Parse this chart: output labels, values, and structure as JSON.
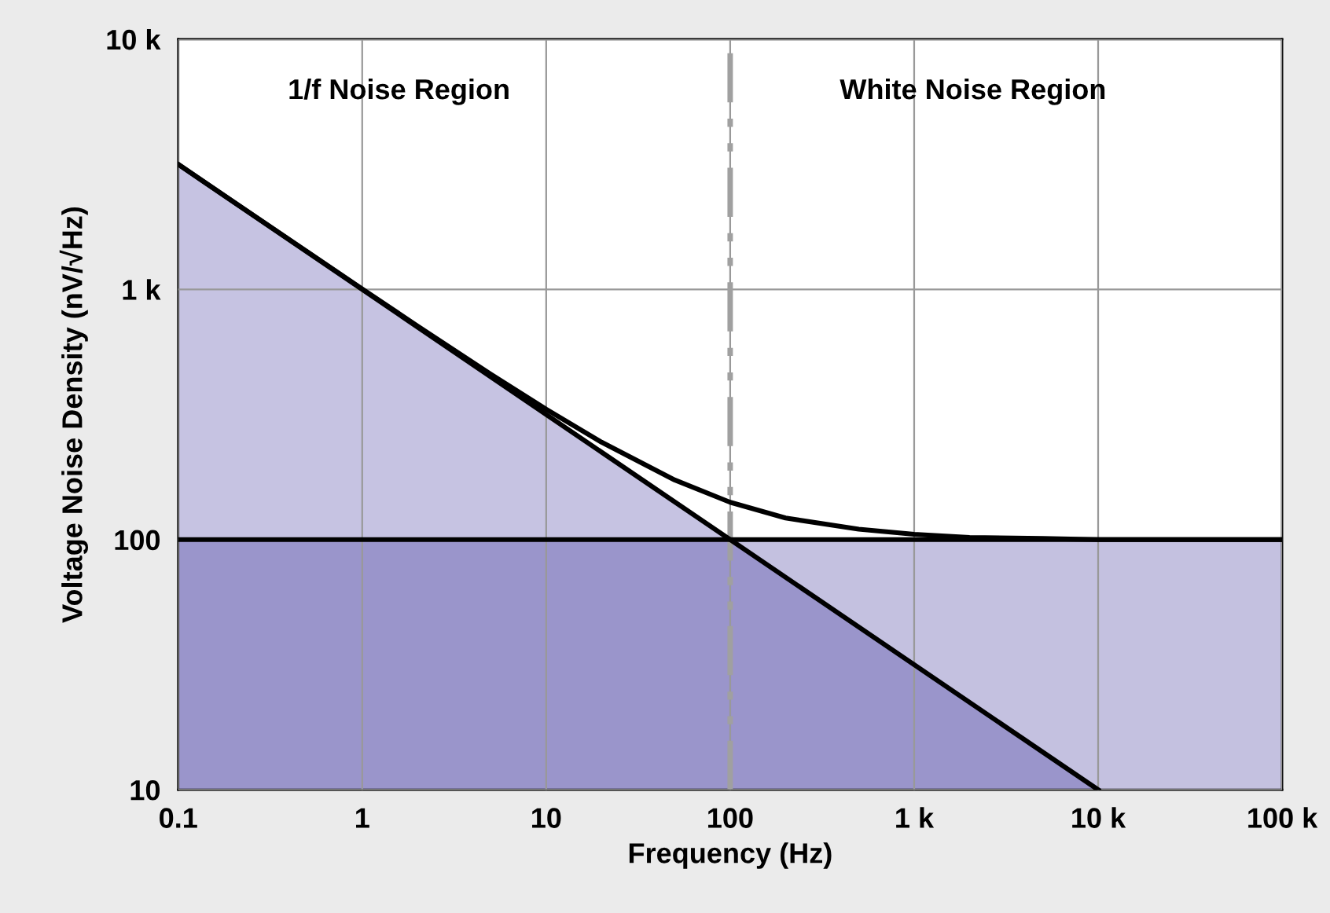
{
  "chart_data": {
    "type": "area",
    "xlabel": "Frequency (Hz)",
    "ylabel": "Voltage Noise Density (nV/√Hz)",
    "log": "xy",
    "xlim": [
      0.1,
      100000
    ],
    "ylim": [
      10,
      10000
    ],
    "xticks": [
      0.1,
      1,
      10,
      100,
      {
        "value": 1000,
        "label": "1 k"
      },
      {
        "value": 10000,
        "label": "10 k"
      },
      {
        "value": 100000,
        "label": "100 k"
      }
    ],
    "yticks": [
      10,
      100,
      {
        "value": 1000,
        "label": "1 k"
      },
      {
        "value": 10000,
        "label": "10 k"
      }
    ],
    "grid": true,
    "series": [
      {
        "color": "#c6c3e2",
        "x": [
          0.1,
          10000
        ],
        "values": [
          3162,
          10
        ]
      },
      {
        "color": "#c4c1e0",
        "x": [
          0.1,
          100000
        ],
        "values": [
          100,
          100
        ]
      },
      {
        "type": "line",
        "color": "#000000",
        "x": [
          0.1,
          0.2,
          0.5,
          1,
          2,
          5,
          10,
          20,
          50,
          100,
          200,
          500,
          1000,
          2000,
          5000,
          10000,
          100000
        ],
        "values": [
          3164,
          2238,
          1418,
          1005,
          714,
          458,
          332,
          245,
          173,
          141,
          122,
          110,
          105,
          102,
          101,
          100,
          100
        ]
      }
    ],
    "ref_lines": [
      {
        "axis": "x",
        "value": 100,
        "color": "#a0a0a0",
        "line_style": "dashed"
      }
    ],
    "annotations": [
      "1/f Noise Region",
      "White Noise Region"
    ]
  }
}
